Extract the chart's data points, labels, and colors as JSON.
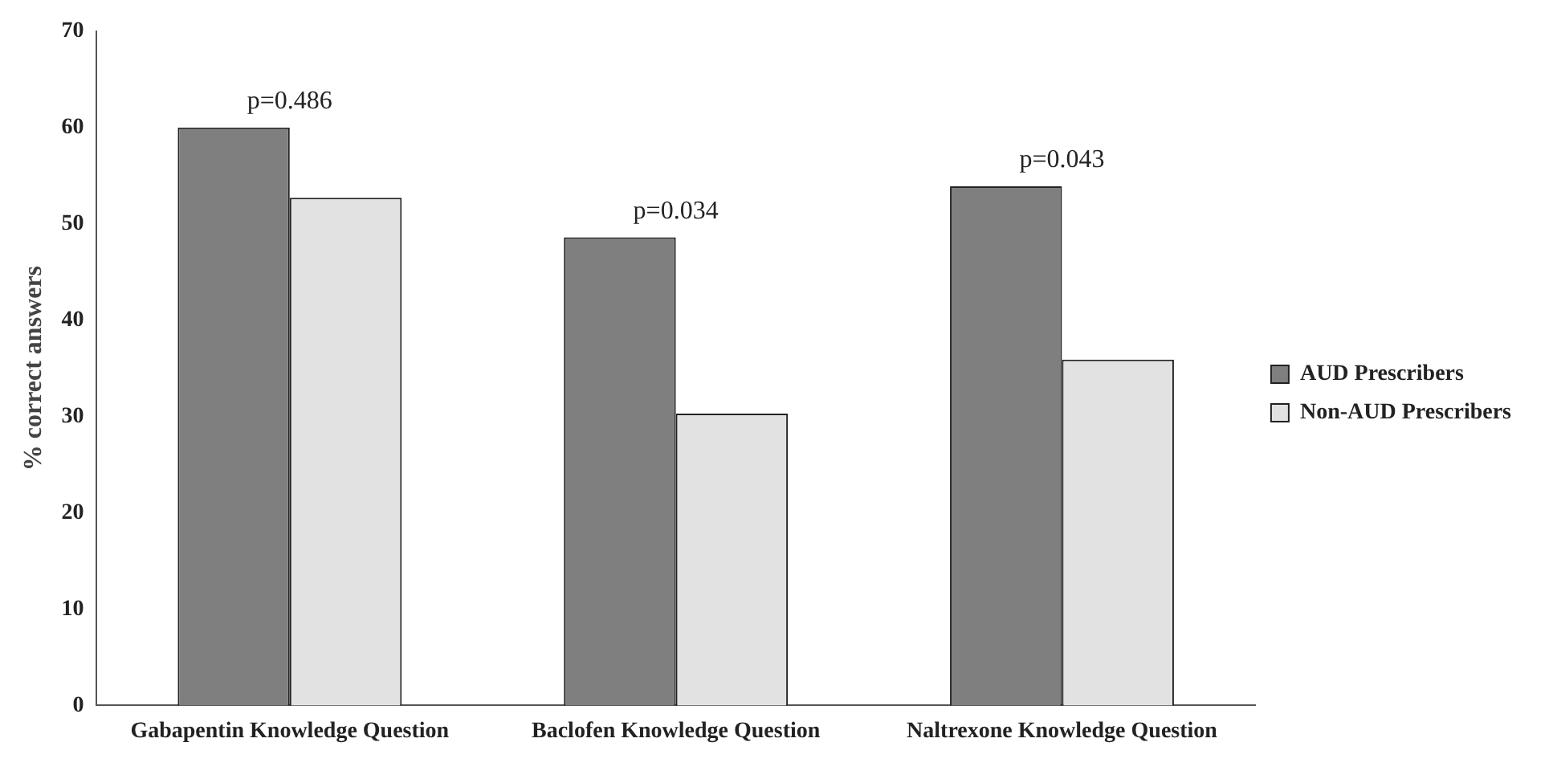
{
  "chart_data": {
    "type": "bar",
    "ylabel": "% correct answers",
    "categories": [
      "Gabapentin Knowledge Question",
      "Baclofen Knowledge Question",
      "Naltrexone Knowledge Question"
    ],
    "series": [
      {
        "name": "AUD Prescribers",
        "color": "#7f7f7f",
        "values": [
          60,
          48.6,
          53.9
        ]
      },
      {
        "name": "Non-AUD Prescribers",
        "color": "#e2e2e2",
        "values": [
          52.7,
          30.3,
          35.9
        ]
      }
    ],
    "ylim": [
      0,
      70
    ],
    "yticks": [
      0,
      10,
      20,
      30,
      40,
      50,
      60,
      70
    ],
    "grid": false,
    "legend": "right",
    "annotations": [
      {
        "text": "p=0.486",
        "x": "Gabapentin Knowledge Question",
        "y": 60
      },
      {
        "text": "p=0.034",
        "x": "Baclofen Knowledge Question",
        "y": 48.6
      },
      {
        "text": "p=0.043",
        "x": "Naltrexone Knowledge Question",
        "y": 53.9
      }
    ]
  }
}
